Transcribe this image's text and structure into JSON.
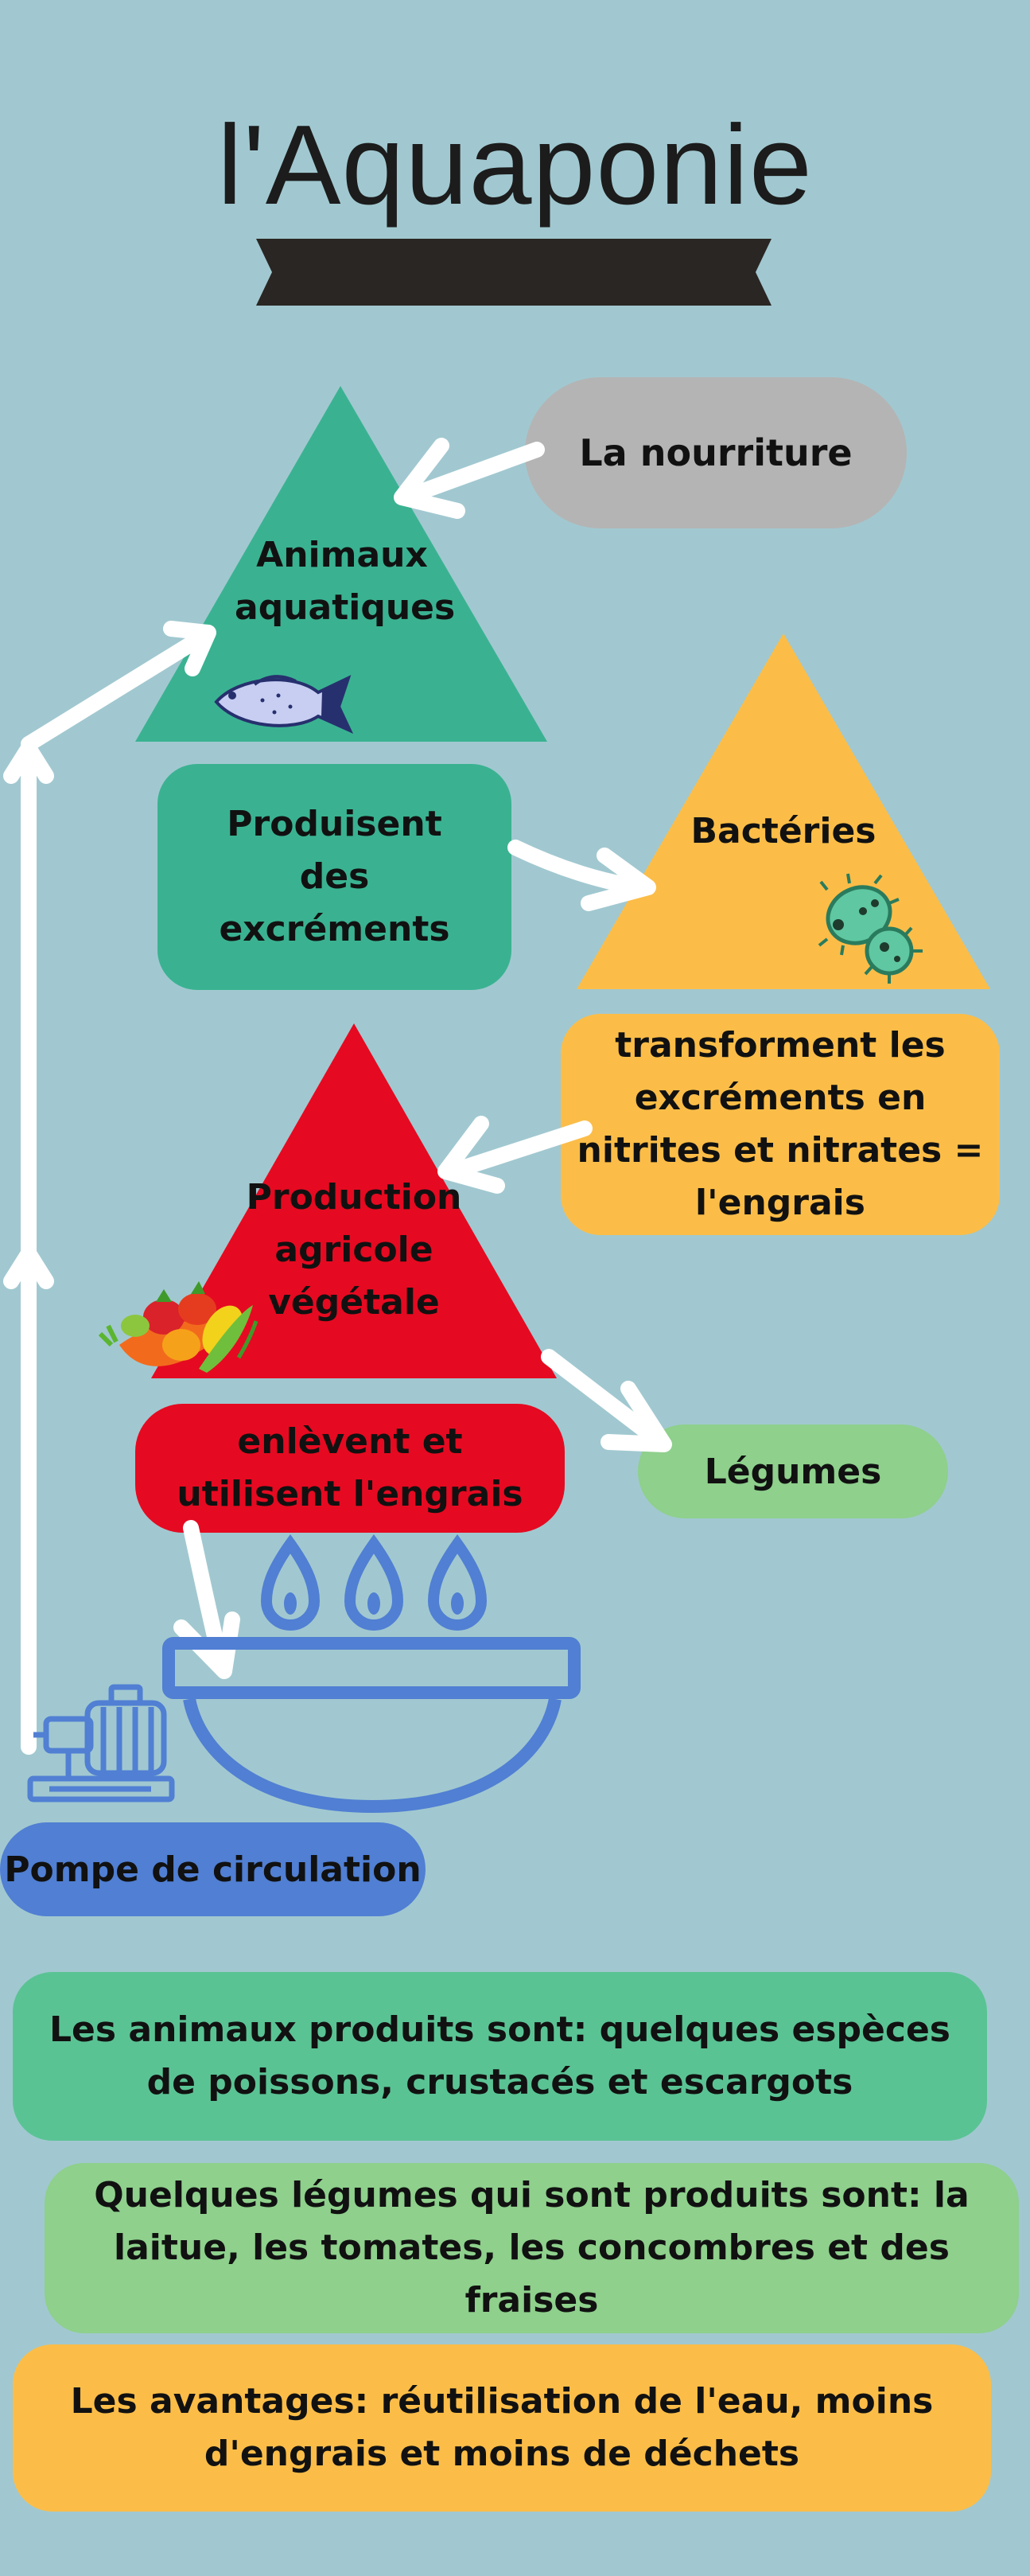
{
  "title": "l'Aquaponie",
  "nodes": {
    "food": "La nourriture",
    "aquatic_animals": "Animaux aquatiques",
    "excrements": "Produisent des excréments",
    "bacteria": "Bactéries",
    "transform": "transforment les excréments en nitrites et nitrates = l'engrais",
    "agri_production": "Production agricole végétale",
    "remove_use": "enlèvent et utilisent l'engrais",
    "vegetables": "Légumes",
    "pump": "Pompe de circulation"
  },
  "info": {
    "animals": "Les animaux produits sont: quelques espèces de poissons, crustacés et escargots",
    "vegetables": "Quelques légumes qui sont produits sont: la laitue, les tomates, les concombres et des fraises",
    "advantages": "Les avantages: réutilisation de l'eau, moins d'engrais et moins de déchets"
  },
  "colors": {
    "background": "#a1c8d0",
    "green_dark": "#3ab291",
    "green_info": "#5ac394",
    "green_light": "#8ed08c",
    "grey": "#b4b4b4",
    "yellow": "#fbbd48",
    "red": "#e50a21",
    "blue": "#507fd3",
    "banner": "#2a2624"
  }
}
